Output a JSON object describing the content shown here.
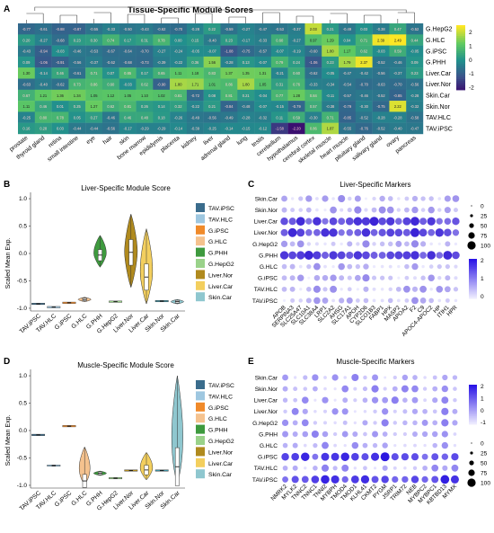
{
  "panels": {
    "a": {
      "letter": "A",
      "title": "Tissue-Specific Module Scores"
    },
    "b": {
      "letter": "B",
      "title": "Liver-Specific Module Score",
      "ylabel": "Scaled Mean Exp."
    },
    "c": {
      "letter": "C",
      "title": "Liver-Specific Markers"
    },
    "d": {
      "letter": "D",
      "title": "Muscle-Specific Module Score",
      "ylabel": "Scaled Mean Exp."
    },
    "e": {
      "letter": "E",
      "title": "Muscle-Specific Markers"
    }
  },
  "colors": {
    "TAV.iPSC": "#3a6c8c",
    "TAV.HLC": "#9ec7e0",
    "G.iPSC": "#f08a2a",
    "G.HLC": "#f5c28e",
    "G.PHH": "#3e9a3e",
    "G.HepG2": "#9ad28a",
    "Liver.Nor": "#b08a1e",
    "Liver.Car": "#f3cf5e",
    "Skin.Nor": "#3c8ea0",
    "Skin.Car": "#8fc7cf"
  },
  "chart_data": [
    {
      "type": "heatmap",
      "panel": "A",
      "title": "Tissue-Specific Module Scores",
      "rows": [
        "G.HepG2",
        "G.HLC",
        "G.iPSC",
        "G.PHH",
        "Liver.Car",
        "Liver.Nor",
        "Skin.Car",
        "Skin.Nor",
        "TAV.HLC",
        "TAV.iPSC"
      ],
      "columns": [
        "prostate",
        "thyroid gland",
        "retina",
        "small intestine",
        "eye",
        "hair",
        "skin",
        "bone marrow",
        "epididymis",
        "placenta",
        "kidney",
        "liver",
        "adrenal gland",
        "lung",
        "testis",
        "cerebellum",
        "hypothalamus",
        "cerebral cortex",
        "skeletal muscle",
        "heart muscle",
        "pituitary gland",
        "salivary gland",
        "ovary",
        "pancreas"
      ],
      "values": [
        [
          -0.77,
          -0.61,
          -0.88,
          -0.87,
          -0.55,
          -0.33,
          -0.5,
          -0.43,
          -0.62,
          -0.7,
          -0.28,
          0.22,
          -0.59,
          -0.27,
          -0.47,
          -0.53,
          -0.37,
          2.03,
          0.21,
          -0.49,
          0.03,
          -0.38,
          0.47,
          -0.52
        ],
        [
          0.2,
          -0.27,
          -0.68,
          0.23,
          0.3,
          0.74,
          0.17,
          0.31,
          0.78,
          0.0,
          0.15,
          -0.4,
          0.23,
          -0.17,
          -0.33,
          0.6,
          -0.27,
          0.97,
          1.29,
          0.04,
          0.71,
          2.39,
          2.49,
          0.44
        ],
        [
          -0.43,
          -0.94,
          -0.03,
          -0.46,
          -0.53,
          -0.67,
          -0.64,
          -0.7,
          -0.27,
          -0.24,
          -0.05,
          -0.07,
          -1.08,
          -0.75,
          -0.57,
          -0.07,
          -0.19,
          -0.6,
          1.8,
          1.17,
          0.62,
          -0.03,
          0.59,
          -0.05
        ],
        [
          0.09,
          -1.06,
          -0.91,
          -0.56,
          -0.37,
          -0.62,
          -0.68,
          -0.73,
          -0.39,
          -0.22,
          0.36,
          1.56,
          -0.28,
          0.13,
          -0.07,
          0.79,
          0.24,
          -1.06,
          0.23,
          1.79,
          2.37,
          -0.52,
          -0.46,
          0.09
        ],
        [
          1.3,
          -0.14,
          0.46,
          -0.61,
          0.71,
          0.07,
          0.85,
          0.17,
          0.65,
          1.11,
          1.18,
          0.83,
          1.37,
          1.35,
          1.31,
          -0.21,
          0.6,
          -0.62,
          -0.05,
          -0.47,
          -0.42,
          -0.56,
          -0.37,
          0.23
        ],
        [
          -0.63,
          -0.4,
          -0.62,
          0.73,
          0.86,
          0.6,
          -0.03,
          0.62,
          -0.9,
          1.8,
          1.71,
          1.01,
          0.86,
          1.8,
          1.05,
          0.31,
          0.76,
          -0.33,
          -0.34,
          -0.54,
          -0.7,
          -0.63,
          -0.7,
          -0.56
        ],
        [
          0.67,
          1.21,
          1.36,
          1.34,
          1.05,
          1.12,
          1.05,
          1.1,
          1.02,
          0.81,
          -0.72,
          0.08,
          0.81,
          0.21,
          -0.04,
          0.77,
          1.28,
          0.84,
          -0.11,
          -0.57,
          -0.46,
          -0.52,
          -0.85,
          -0.28
        ],
        [
          1.11,
          0.46,
          0.01,
          0.25,
          1.27,
          0.62,
          0.81,
          0.26,
          0.14,
          0.32,
          -0.22,
          0.21,
          -0.84,
          -0.48,
          -0.07,
          -0.15,
          -0.79,
          0.57,
          -0.38,
          -0.79,
          -0.3,
          -0.75,
          2.22,
          -0.32
        ],
        [
          -0.25,
          0.8,
          0.78,
          0.05,
          0.27,
          -0.46,
          0.46,
          0.48,
          0.18,
          -0.26,
          -0.49,
          -0.56,
          -0.49,
          -0.28,
          -0.32,
          0.11,
          0.59,
          -0.3,
          0.71,
          -0.85,
          -0.52,
          -0.28,
          -0.28,
          -0.58
        ],
        [
          0.16,
          0.28,
          0.03,
          -0.44,
          -0.44,
          -0.56,
          -0.17,
          -0.29,
          -0.29,
          -0.14,
          -0.39,
          -0.25,
          -0.14,
          -0.15,
          -0.12,
          -1.58,
          -2.2,
          0.86,
          1.87,
          -0.55,
          -0.76,
          -0.52,
          -0.4,
          -0.47
        ]
      ],
      "legend": {
        "ticks": [
          2,
          1,
          0,
          -1,
          -2
        ]
      }
    },
    {
      "type": "violin",
      "panel": "B",
      "title": "Liver-Specific Module Score",
      "ylabel": "Scaled Mean Exp.",
      "ylim": [
        -1.05,
        1.05
      ],
      "yticks": [
        1.0,
        0.5,
        0.0,
        -0.5,
        -1.0
      ],
      "categories": [
        "TAV.iPSC",
        "TAV.HLC",
        "G.iPSC",
        "G.HLC",
        "G.PHH",
        "G.HepG2",
        "Liver.Nor",
        "Liver.Car",
        "Skin.Nor",
        "Skin.Car"
      ],
      "medians": [
        -0.92,
        -0.98,
        -0.9,
        -0.84,
        -0.03,
        -0.88,
        0.02,
        -0.43,
        -0.87,
        -0.88
      ],
      "ranges": [
        [
          -0.93,
          -0.91
        ],
        [
          -0.99,
          -0.97
        ],
        [
          -0.91,
          -0.89
        ],
        [
          -0.88,
          -0.8
        ],
        [
          -0.25,
          0.33
        ],
        [
          -0.89,
          -0.87
        ],
        [
          -0.62,
          0.72
        ],
        [
          -0.92,
          0.45
        ],
        [
          -0.88,
          -0.86
        ],
        [
          -0.92,
          -0.84
        ]
      ],
      "legend": [
        "TAV.iPSC",
        "TAV.HLC",
        "G.iPSC",
        "G.HLC",
        "G.PHH",
        "G.HepG2",
        "Liver.Nor",
        "Liver.Car",
        "Skin.Car"
      ]
    },
    {
      "type": "dot",
      "panel": "C",
      "title": "Liver-Specific Markers",
      "rows": [
        "Skin.Car",
        "Skin.Nor",
        "Liver.Car",
        "Liver.Nor",
        "G.HepG2",
        "G.PHH",
        "G.HLC",
        "G.iPSC",
        "TAV.HLC",
        "TAV.iPSC"
      ],
      "genes": [
        "APOB",
        "SERPINA3",
        "SLC25A47",
        "SLC10A1",
        "SLC38A4",
        "LRP1",
        "SLC2A2",
        "AHSG",
        "SLC17A1",
        "APOH",
        "CYP2D6",
        "SLCO1B3",
        "FABP1",
        "HPX",
        "MASP2",
        "APOA2",
        "F2",
        "C9",
        "APOC4-APOC2",
        "HP",
        "ITIH1",
        "HPR"
      ],
      "size_legend": [
        0,
        25,
        50,
        75,
        100
      ],
      "color_legend": [
        2,
        1,
        0
      ]
    },
    {
      "type": "violin",
      "panel": "D",
      "title": "Muscle-Specific Module Score",
      "ylabel": "Scaled Mean Exp.",
      "ylim": [
        -1.05,
        1.05
      ],
      "yticks": [
        1.0,
        0.5,
        0.0,
        -0.5,
        -1.0
      ],
      "categories": [
        "TAV.iPSC",
        "TAV.HLC",
        "G.iPSC",
        "G.HLC",
        "G.PHH",
        "G.HepG2",
        "Liver.Nor",
        "Liver.Car",
        "Skin.Nor",
        "Skin.Car"
      ],
      "medians": [
        -0.08,
        -0.64,
        0.08,
        -0.92,
        -0.78,
        -0.87,
        -0.73,
        -0.72,
        -0.73,
        -0.66
      ],
      "ranges": [
        [
          -0.1,
          -0.06
        ],
        [
          -0.65,
          -0.63
        ],
        [
          0.07,
          0.09
        ],
        [
          -0.98,
          -0.3
        ],
        [
          -0.82,
          -0.74
        ],
        [
          -0.89,
          -0.85
        ],
        [
          -0.76,
          -0.7
        ],
        [
          -0.9,
          -0.4
        ],
        [
          -0.75,
          -0.71
        ],
        [
          -0.98,
          1.0
        ]
      ],
      "legend": [
        "TAV.iPSC",
        "TAV.HLC",
        "G.iPSC",
        "G.HLC",
        "G.PHH",
        "G.HepG2",
        "Liver.Nor",
        "Liver.Car",
        "Skin.Car"
      ]
    },
    {
      "type": "dot",
      "panel": "E",
      "title": "Muscle-Specific Markers",
      "rows": [
        "Skin.Car",
        "Skin.Nor",
        "Liver.Car",
        "Liver.Nor",
        "G.HepG2",
        "G.PHH",
        "G.HLC",
        "G.iPSC",
        "TAV.HLC",
        "TAV.iPSC"
      ],
      "genes": [
        "NMRK2",
        "MYLK2",
        "TNNC2",
        "TNNC1",
        "TNNI2",
        "MYBPH",
        "TMOD4",
        "TMOD1",
        "KLHL41",
        "CKMT2",
        "PYGM",
        "JSRP1",
        "TRIM72",
        "NEB",
        "MYBPC2",
        "MYBPC1",
        "KBTBD13",
        "MYMX"
      ],
      "color_legend": [
        2,
        1,
        0,
        -1
      ],
      "size_legend": [
        0,
        25,
        50,
        75,
        100
      ]
    }
  ]
}
